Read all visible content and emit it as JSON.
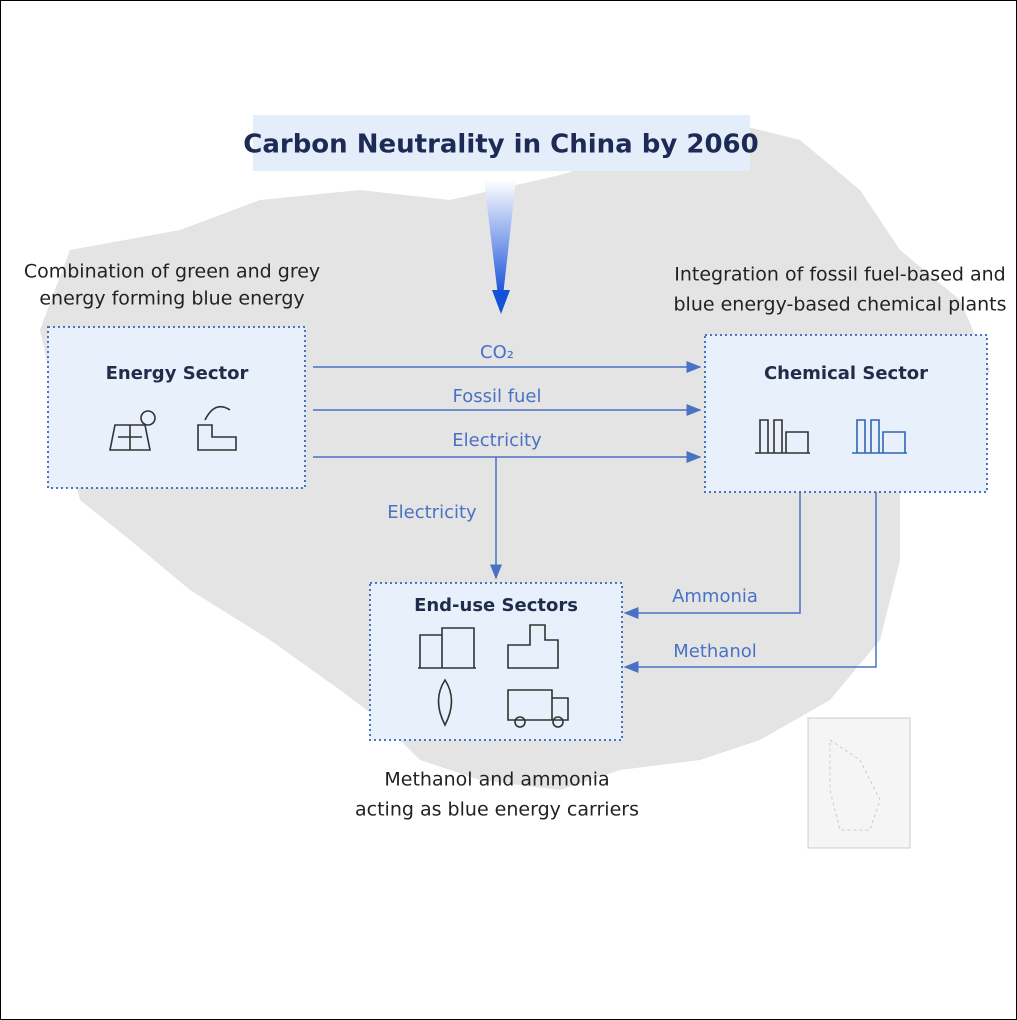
{
  "title": "Carbon Neutrality in China by 2060",
  "captions": {
    "energy": [
      "Combination of green and grey",
      "energy forming blue energy"
    ],
    "chemical": [
      "Integration of fossil fuel-based and",
      "blue energy-based chemical plants"
    ],
    "end_use": [
      "Methanol and ammonia",
      "acting as blue energy carriers"
    ]
  },
  "nodes": [
    {
      "label": "Energy Sector"
    },
    {
      "label": "Chemical Sector"
    },
    {
      "label": "End-use Sectors"
    }
  ],
  "edges": [
    {
      "label": "CO₂"
    },
    {
      "label": "Fossil fuel"
    },
    {
      "label": "Electricity"
    },
    {
      "label": "Electricity"
    },
    {
      "label": "Ammonia"
    },
    {
      "label": "Methanol"
    }
  ]
}
